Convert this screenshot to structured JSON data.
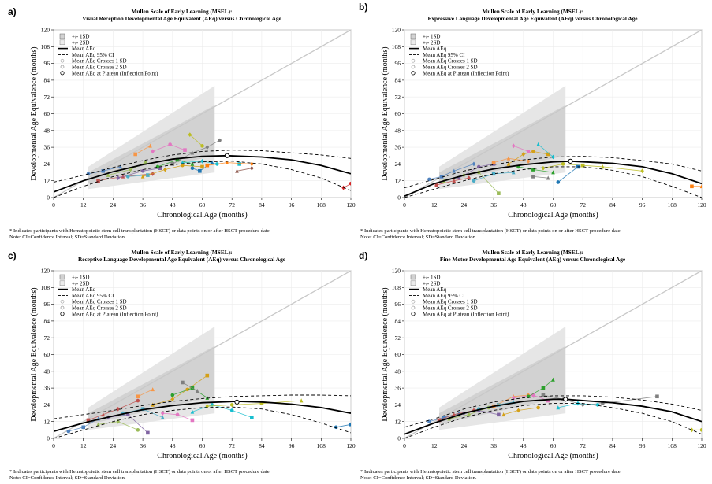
{
  "figure": {
    "common": {
      "x_label": "Chronological Age (months)",
      "y_label": "Developmental Age Equivalence (months)",
      "legend": [
        "+/- 1SD",
        "+/- 2SD",
        "Mean AEq",
        "Mean AEq 95% CI",
        "Mean AEq Crosses 1 SD",
        "Mean AEq Crosses 2 SD",
        "Mean AEq at Plateau (Inflection Point)"
      ],
      "footnote_1": "* Indicates participants with Hematopoietic stem cell transplantation (HSCT) or data points on or after HSCT procedure date.",
      "footnote_2": "Note: CI=Confidence Interval; SD=Standard Deviation."
    },
    "panels": [
      {
        "letter": "a)",
        "title_1": "Mullen Scale of Early Learning (MSEL):",
        "title_2": "Visual Reception Developmental Age Equivalent (AEq) versus Chronological Age"
      },
      {
        "letter": "b)",
        "title_1": "Mullen Scale of Early Learning (MSEL):",
        "title_2": "Expressive Language Developmental Age Equivalent (AEq) versus Chronological Age"
      },
      {
        "letter": "c)",
        "title_1": "Mullen Scale of Early Learning (MSEL):",
        "title_2": "Receptive Language Developmental Age Equivalent (AEq) versus Chronological Age"
      },
      {
        "letter": "d)",
        "title_1": "Mullen Scale of Early Learning (MSEL):",
        "title_2": "Fine Motor Developmental Age Equivalent (AEq) versus Chronological Age"
      }
    ]
  },
  "chart_data": [
    {
      "type": "line",
      "title": "Visual Reception Developmental Age Equivalent (AEq) versus Chronological Age",
      "xlabel": "Chronological Age (months)",
      "ylabel": "Developmental Age Equivalence (months)",
      "xlim": [
        0,
        120
      ],
      "ylim": [
        0,
        120
      ],
      "xticks": [
        0,
        12,
        24,
        36,
        48,
        60,
        72,
        84,
        96,
        108,
        120
      ],
      "yticks": [
        0,
        12,
        24,
        36,
        48,
        60,
        72,
        84,
        96,
        108,
        120
      ],
      "mean_aeq": {
        "x": [
          0,
          12,
          24,
          36,
          48,
          60,
          70,
          84,
          96,
          108,
          120
        ],
        "y": [
          4,
          12,
          18.5,
          23.5,
          27.5,
          29.5,
          30,
          29,
          27,
          23,
          17
        ]
      },
      "ci_upper": {
        "x": [
          0,
          12,
          24,
          36,
          48,
          60,
          72,
          84,
          96,
          108,
          120
        ],
        "y": [
          11,
          16,
          21.5,
          26.5,
          30.5,
          33,
          34,
          33.5,
          32,
          30.5,
          28
        ]
      },
      "ci_lower": {
        "x": [
          0,
          12,
          24,
          36,
          48,
          60,
          72,
          84,
          96,
          108,
          120
        ],
        "y": [
          0,
          8,
          15,
          20,
          23.5,
          25.5,
          26,
          24,
          20,
          14,
          5
        ]
      },
      "plateau": {
        "x": 70,
        "y": 30
      },
      "identity_line": {
        "x": [
          0,
          120
        ],
        "y": [
          0,
          120
        ]
      },
      "participants": [
        {
          "x": [
            14,
            20,
            27
          ],
          "y": [
            17,
            19,
            22
          ]
        },
        {
          "x": [
            18,
            28,
            40
          ],
          "y": [
            12,
            15,
            17
          ]
        },
        {
          "x": [
            22,
            31,
            37
          ],
          "y": [
            16,
            20,
            25
          ]
        },
        {
          "x": [
            26,
            36,
            43
          ],
          "y": [
            14,
            19,
            21
          ]
        },
        {
          "x": [
            30,
            38
          ],
          "y": [
            15,
            16
          ]
        },
        {
          "x": [
            33,
            39
          ],
          "y": [
            31,
            37
          ]
        },
        {
          "x": [
            36,
            45,
            52,
            60
          ],
          "y": [
            15,
            20,
            23,
            22
          ]
        },
        {
          "x": [
            40,
            47,
            53
          ],
          "y": [
            33,
            38,
            34
          ]
        },
        {
          "x": [
            42,
            50,
            56
          ],
          "y": [
            22,
            27,
            24
          ]
        },
        {
          "x": [
            48,
            56,
            62,
            67
          ],
          "y": [
            24,
            32,
            36,
            41
          ]
        },
        {
          "x": [
            52,
            60,
            66,
            75
          ],
          "y": [
            25,
            26,
            24,
            24
          ]
        },
        {
          "x": [
            55,
            60
          ],
          "y": [
            45,
            37
          ]
        },
        {
          "x": [
            56,
            59,
            64
          ],
          "y": [
            21,
            19,
            25
          ]
        },
        {
          "x": [
            62,
            70,
            80
          ],
          "y": [
            23,
            25,
            24
          ]
        },
        {
          "x": [
            74,
            80
          ],
          "y": [
            19,
            21
          ]
        },
        {
          "x": [
            117,
            120
          ],
          "y": [
            7,
            10
          ]
        }
      ]
    },
    {
      "type": "line",
      "title": "Expressive Language Developmental Age Equivalent (AEq) versus Chronological Age",
      "xlabel": "Chronological Age (months)",
      "ylabel": "Developmental Age Equivalence (months)",
      "xlim": [
        0,
        120
      ],
      "ylim": [
        0,
        120
      ],
      "xticks": [
        0,
        12,
        24,
        36,
        48,
        60,
        72,
        84,
        96,
        108,
        120
      ],
      "yticks": [
        0,
        12,
        24,
        36,
        48,
        60,
        72,
        84,
        96,
        108,
        120
      ],
      "mean_aeq": {
        "x": [
          0,
          12,
          24,
          36,
          48,
          60,
          67,
          84,
          96,
          108,
          120
        ],
        "y": [
          1,
          10,
          16,
          20.5,
          23.5,
          25.5,
          26,
          24.5,
          22,
          17,
          10
        ]
      },
      "ci_upper": {
        "x": [
          0,
          12,
          24,
          36,
          48,
          60,
          72,
          84,
          96,
          108,
          120
        ],
        "y": [
          7,
          13,
          19,
          23.5,
          27,
          29,
          29.5,
          28.5,
          26.5,
          24,
          19
        ]
      },
      "ci_lower": {
        "x": [
          0,
          12,
          24,
          36,
          48,
          60,
          72,
          84,
          96,
          108,
          120
        ],
        "y": [
          0,
          6,
          12,
          17,
          20,
          22,
          22,
          19.5,
          15,
          8,
          0
        ]
      },
      "plateau": {
        "x": 67,
        "y": 26
      },
      "identity_line": {
        "x": [
          0,
          120
        ],
        "y": [
          0,
          120
        ]
      },
      "participants": [
        {
          "x": [
            10,
            15,
            20,
            28
          ],
          "y": [
            13,
            15,
            19,
            24
          ]
        },
        {
          "x": [
            13,
            20,
            26
          ],
          "y": [
            9,
            12,
            14
          ]
        },
        {
          "x": [
            16,
            24,
            30,
            38
          ],
          "y": [
            12,
            16,
            18,
            3
          ]
        },
        {
          "x": [
            22,
            30,
            36
          ],
          "y": [
            14,
            22,
            24
          ]
        },
        {
          "x": [
            28,
            36,
            44
          ],
          "y": [
            12,
            17,
            18
          ]
        },
        {
          "x": [
            36,
            42,
            50
          ],
          "y": [
            25,
            28,
            26
          ]
        },
        {
          "x": [
            42,
            48,
            52,
            58
          ],
          "y": [
            24,
            31,
            33,
            31
          ]
        },
        {
          "x": [
            44,
            50
          ],
          "y": [
            37,
            33
          ]
        },
        {
          "x": [
            46,
            52,
            60
          ],
          "y": [
            22,
            20,
            18
          ]
        },
        {
          "x": [
            52,
            58
          ],
          "y": [
            15,
            14
          ]
        },
        {
          "x": [
            54,
            60
          ],
          "y": [
            38,
            29
          ]
        },
        {
          "x": [
            56,
            64,
            72,
            80,
            96
          ],
          "y": [
            21,
            24,
            23,
            22,
            19
          ]
        },
        {
          "x": [
            62,
            70
          ],
          "y": [
            11,
            22
          ]
        },
        {
          "x": [
            116,
            120
          ],
          "y": [
            8,
            8
          ]
        }
      ]
    },
    {
      "type": "line",
      "title": "Receptive Language Developmental Age Equivalent (AEq) versus Chronological Age",
      "xlabel": "Chronological Age (months)",
      "ylabel": "Developmental Age Equivalence (months)",
      "xlim": [
        0,
        120
      ],
      "ylim": [
        0,
        120
      ],
      "xticks": [
        0,
        12,
        24,
        36,
        48,
        60,
        72,
        84,
        96,
        108,
        120
      ],
      "yticks": [
        0,
        12,
        24,
        36,
        48,
        60,
        72,
        84,
        96,
        108,
        120
      ],
      "mean_aeq": {
        "x": [
          0,
          12,
          24,
          36,
          48,
          60,
          74,
          84,
          96,
          108,
          120
        ],
        "y": [
          5,
          11,
          16,
          20.5,
          23.5,
          25.5,
          26.5,
          26,
          24.5,
          22,
          18
        ]
      },
      "ci_upper": {
        "x": [
          0,
          12,
          24,
          36,
          48,
          60,
          72,
          84,
          96,
          108,
          120
        ],
        "y": [
          14,
          17,
          20,
          23.5,
          26.5,
          28.5,
          30,
          30.5,
          31,
          31,
          30.5
        ]
      },
      "ci_lower": {
        "x": [
          0,
          12,
          24,
          36,
          48,
          60,
          72,
          84,
          96,
          108,
          120
        ],
        "y": [
          0,
          6,
          12,
          17,
          20,
          22,
          22.5,
          21,
          17,
          11,
          4
        ]
      },
      "plateau": {
        "x": 74,
        "y": 26
      },
      "identity_line": {
        "x": [
          0,
          120
        ],
        "y": [
          0,
          120
        ]
      },
      "participants": [
        {
          "x": [
            6,
            12,
            18
          ],
          "y": [
            5,
            8,
            14
          ]
        },
        {
          "x": [
            14,
            20,
            26,
            34
          ],
          "y": [
            13,
            17,
            21,
            27
          ]
        },
        {
          "x": [
            18,
            26,
            34
          ],
          "y": [
            10,
            12,
            6
          ]
        },
        {
          "x": [
            22,
            30,
            38
          ],
          "y": [
            15,
            17,
            4
          ]
        },
        {
          "x": [
            28,
            36,
            44
          ],
          "y": [
            18,
            21,
            15
          ]
        },
        {
          "x": [
            34,
            40
          ],
          "y": [
            30,
            35
          ]
        },
        {
          "x": [
            40,
            48,
            54,
            62
          ],
          "y": [
            24,
            28,
            35,
            45
          ]
        },
        {
          "x": [
            44,
            50,
            56
          ],
          "y": [
            18,
            17,
            13
          ]
        },
        {
          "x": [
            48,
            56,
            62
          ],
          "y": [
            31,
            36,
            29
          ]
        },
        {
          "x": [
            52,
            58
          ],
          "y": [
            40,
            34
          ]
        },
        {
          "x": [
            56,
            64,
            72,
            80
          ],
          "y": [
            19,
            24,
            20,
            15
          ]
        },
        {
          "x": [
            62,
            72,
            84,
            100
          ],
          "y": [
            23,
            24,
            25,
            27
          ]
        },
        {
          "x": [
            114,
            120
          ],
          "y": [
            8,
            10
          ]
        }
      ]
    },
    {
      "type": "line",
      "title": "Fine Motor Developmental Age Equivalent (AEq) versus Chronological Age",
      "xlabel": "Chronological Age (months)",
      "ylabel": "Developmental Age Equivalence (months)",
      "xlim": [
        0,
        120
      ],
      "ylim": [
        0,
        120
      ],
      "xticks": [
        0,
        12,
        24,
        36,
        48,
        60,
        72,
        84,
        96,
        108,
        120
      ],
      "yticks": [
        0,
        12,
        24,
        36,
        48,
        60,
        72,
        84,
        96,
        108,
        120
      ],
      "mean_aeq": {
        "x": [
          0,
          12,
          24,
          36,
          48,
          60,
          65,
          84,
          96,
          108,
          120
        ],
        "y": [
          3,
          11,
          18,
          23,
          26.5,
          28,
          28,
          25.5,
          23,
          19,
          12
        ]
      },
      "ci_upper": {
        "x": [
          0,
          12,
          24,
          36,
          48,
          60,
          72,
          84,
          96,
          108,
          120
        ],
        "y": [
          8,
          14,
          21,
          26,
          29,
          30.5,
          30.5,
          29.5,
          27.5,
          24.5,
          20
        ]
      },
      "ci_lower": {
        "x": [
          0,
          12,
          24,
          36,
          48,
          60,
          72,
          84,
          96,
          108,
          120
        ],
        "y": [
          0,
          8,
          15,
          20,
          23.5,
          25,
          25,
          22,
          18,
          12,
          3
        ]
      },
      "plateau": {
        "x": 65,
        "y": 28
      },
      "identity_line": {
        "x": [
          0,
          120
        ],
        "y": [
          0,
          120
        ]
      },
      "participants": [
        {
          "x": [
            10,
            16,
            22
          ],
          "y": [
            12,
            15,
            18
          ]
        },
        {
          "x": [
            14,
            20,
            28
          ],
          "y": [
            13,
            17,
            20
          ]
        },
        {
          "x": [
            18,
            26,
            34
          ],
          "y": [
            14,
            17,
            22
          ]
        },
        {
          "x": [
            24,
            30,
            38
          ],
          "y": [
            18,
            20,
            17
          ]
        },
        {
          "x": [
            30,
            38,
            44
          ],
          "y": [
            21,
            24,
            26
          ]
        },
        {
          "x": [
            36,
            44,
            50
          ],
          "y": [
            23,
            30,
            31
          ]
        },
        {
          "x": [
            40,
            46,
            54
          ],
          "y": [
            17,
            20,
            22
          ]
        },
        {
          "x": [
            44,
            52,
            58
          ],
          "y": [
            29,
            31,
            27
          ]
        },
        {
          "x": [
            50,
            56,
            60
          ],
          "y": [
            30,
            36,
            42
          ]
        },
        {
          "x": [
            56,
            64,
            72,
            80,
            102
          ],
          "y": [
            31,
            28,
            24,
            25,
            30
          ]
        },
        {
          "x": [
            62,
            70,
            78
          ],
          "y": [
            22,
            25,
            24
          ]
        },
        {
          "x": [
            116,
            120
          ],
          "y": [
            6,
            6
          ]
        }
      ]
    }
  ]
}
